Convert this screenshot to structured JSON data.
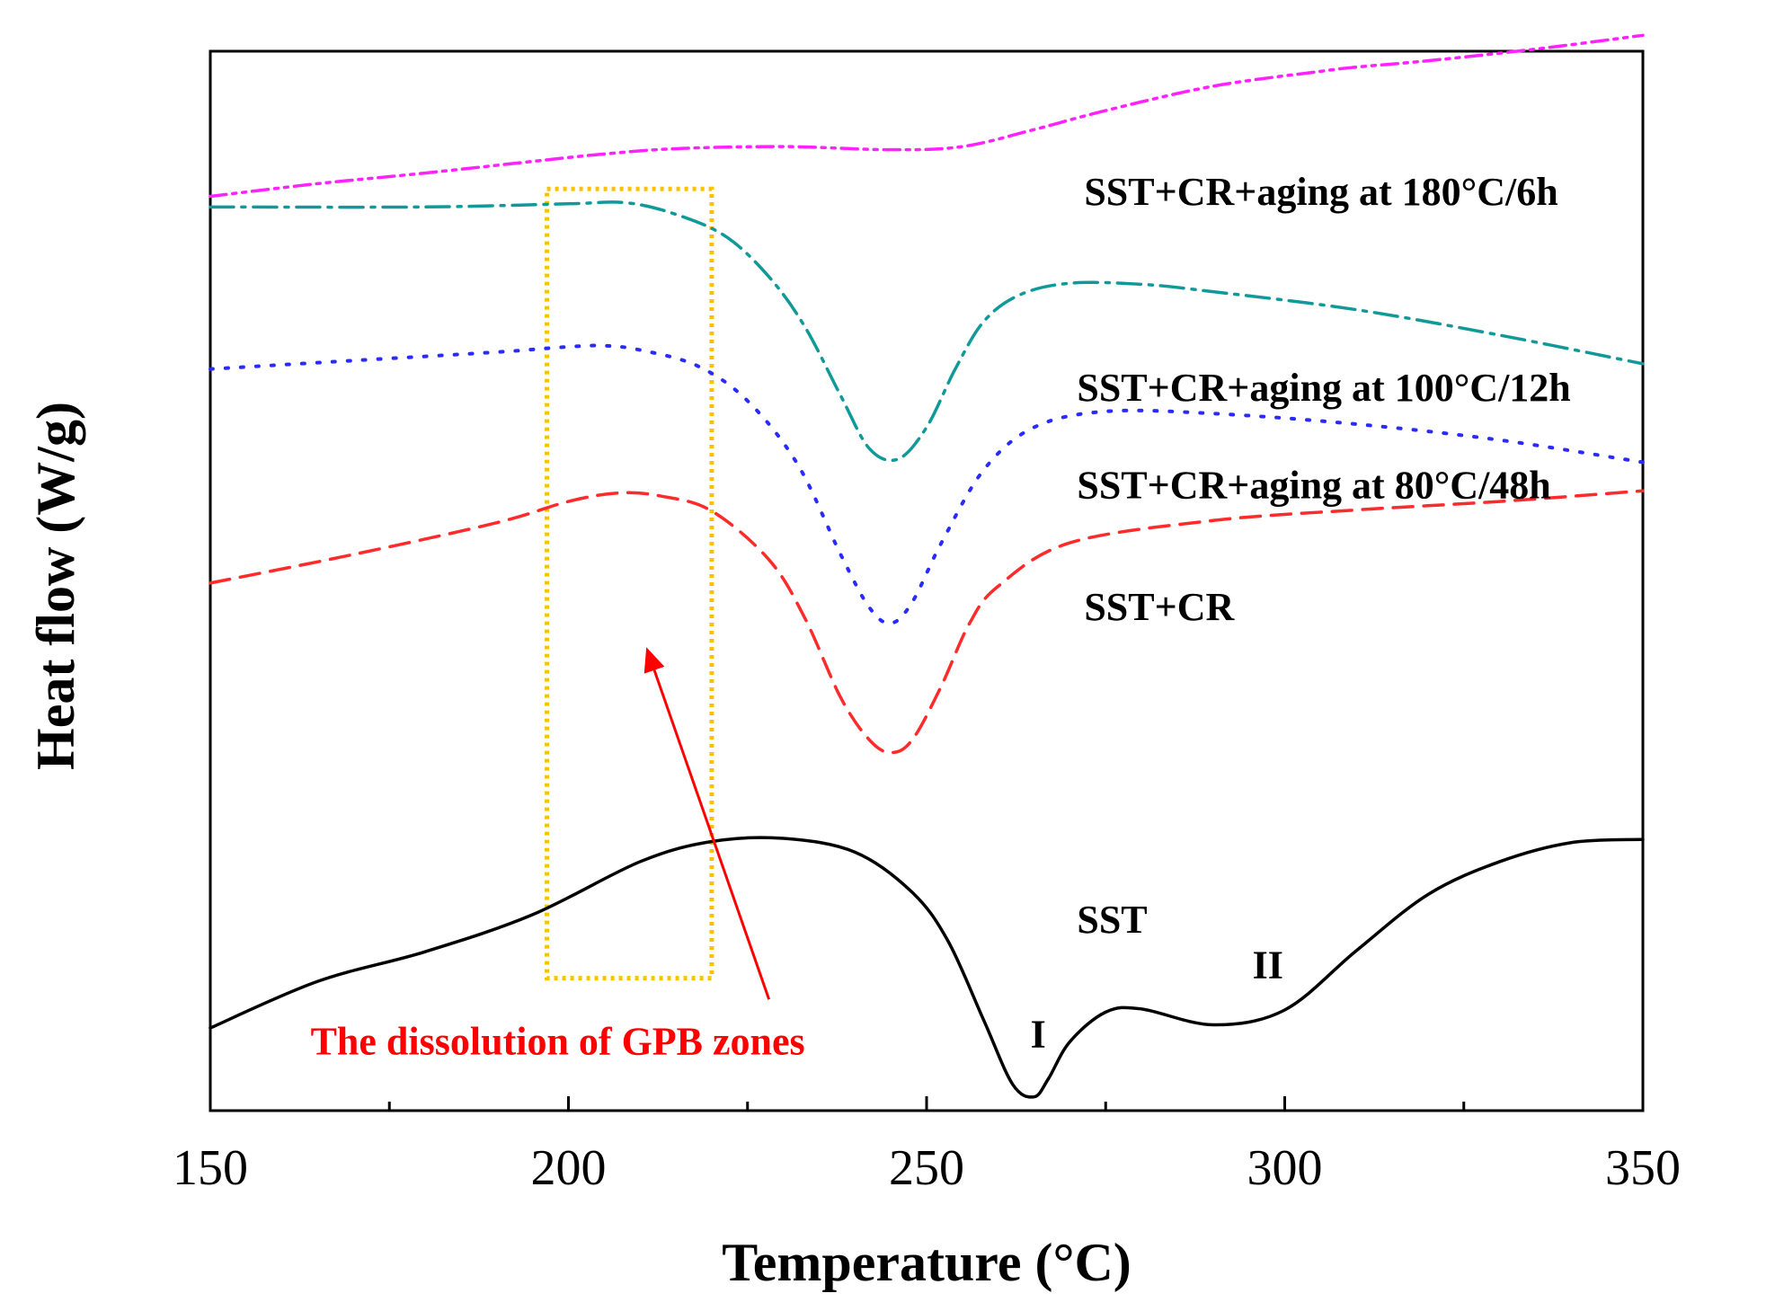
{
  "chart_data": {
    "type": "line",
    "title": "",
    "xlabel": "Temperature (°C)",
    "ylabel": "Heat flow (W/g)",
    "xlim": [
      150,
      350
    ],
    "ylim": [
      0,
      100
    ],
    "xticks": [
      150,
      200,
      250,
      300,
      350
    ],
    "y_tick_labels": false,
    "colors": {
      "sst": "#000000",
      "sst_cr": "#ff2a2a",
      "aging_80": "#2a2aff",
      "aging_100": "#119999",
      "aging_180": "#ff22ff",
      "highlight_box": "#ffc000",
      "arrow": "#ff0000"
    },
    "series": [
      {
        "key": "aging_180",
        "name": "SST+CR+aging at 180°C/6h",
        "style": "dash-dot-dot",
        "x": [
          150,
          165,
          180,
          195,
          205,
          215,
          230,
          245,
          255,
          265,
          275,
          290,
          305,
          310,
          320,
          335,
          350
        ],
        "y": [
          86.3,
          87.5,
          88.5,
          89.6,
          90.3,
          90.8,
          91.0,
          90.7,
          91.0,
          92.6,
          94.4,
          96.7,
          98.1,
          98.5,
          99.1,
          100.2,
          101.5
        ]
      },
      {
        "key": "aging_100",
        "name": "SST+CR+aging at 100°C/12h",
        "style": "dash-dot",
        "x": [
          150,
          180,
          200,
          208,
          215,
          222,
          228,
          233,
          238,
          242,
          246,
          250,
          254,
          258,
          263,
          270,
          280,
          290,
          310,
          330,
          350
        ],
        "y": [
          85.3,
          85.3,
          85.6,
          85.7,
          84.6,
          82.5,
          78.7,
          74.0,
          67.5,
          62.5,
          61.5,
          64.5,
          70.0,
          74.5,
          77.0,
          78.1,
          78.0,
          77.3,
          75.6,
          73.2,
          70.5
        ]
      },
      {
        "key": "aging_80",
        "name": "SST+CR+aging at 80°C/48h",
        "style": "dotted",
        "x": [
          150,
          170,
          190,
          200,
          205,
          210,
          218,
          225,
          232,
          238,
          242,
          245,
          248,
          252,
          258,
          265,
          275,
          290,
          310,
          330,
          350
        ],
        "y": [
          70.0,
          70.8,
          71.6,
          72.1,
          72.2,
          71.8,
          70.3,
          67.0,
          61.0,
          52.5,
          47.5,
          46.0,
          48.0,
          53.5,
          60.5,
          64.5,
          66.0,
          65.8,
          64.8,
          63.3,
          61.2
        ]
      },
      {
        "key": "sst_cr",
        "name": "SST+CR",
        "style": "dashed",
        "x": [
          150,
          170,
          190,
          200,
          207,
          213,
          220,
          228,
          233,
          238,
          242,
          245,
          248,
          252,
          256,
          260,
          270,
          290,
          310,
          330,
          350
        ],
        "y": [
          49.8,
          52.5,
          55.5,
          57.5,
          58.3,
          58.0,
          56.6,
          52.0,
          46.5,
          39.0,
          35.0,
          33.8,
          35.0,
          40.0,
          46.0,
          49.5,
          53.6,
          55.7,
          56.7,
          57.5,
          58.5
        ]
      },
      {
        "key": "sst",
        "name": "SST",
        "style": "solid",
        "x": [
          150,
          165,
          180,
          195,
          210,
          220,
          230,
          240,
          248,
          253,
          258,
          262,
          265,
          267,
          270,
          275,
          280,
          290,
          300,
          310,
          320,
          330,
          340,
          350
        ],
        "y": [
          7.8,
          12.2,
          15.0,
          18.5,
          23.5,
          25.4,
          25.7,
          24.4,
          20.6,
          16.0,
          8.5,
          2.5,
          1.3,
          3.0,
          6.5,
          9.3,
          9.6,
          8.1,
          9.5,
          15.1,
          20.4,
          23.5,
          25.3,
          25.6
        ]
      }
    ],
    "labels": {
      "aging_180": "SST+CR+aging at 180°C/6h",
      "aging_100": "SST+CR+aging at 100°C/12h",
      "aging_80": "SST+CR+aging at 80°C/48h",
      "sst_cr": "SST+CR",
      "sst": "SST",
      "peak_1": "I",
      "peak_2": "II",
      "annotation": "The dissolution of GPB zones"
    },
    "label_positions": {
      "aging_180": [
        272,
        85.5
      ],
      "aging_100": [
        271,
        67.0
      ],
      "aging_80": [
        271,
        57.8
      ],
      "sst_cr": [
        272,
        46.3
      ],
      "sst": [
        271,
        16.8
      ],
      "peak_1": [
        264.5,
        6.0
      ],
      "peak_2": [
        295.5,
        12.5
      ],
      "annotation": [
        164,
        5.3
      ]
    },
    "highlight_box": {
      "x": [
        197,
        220
      ],
      "y": [
        12.5,
        87.0
      ]
    },
    "arrow": {
      "from": [
        228,
        10.5
      ],
      "to": [
        211,
        43.5
      ]
    }
  }
}
